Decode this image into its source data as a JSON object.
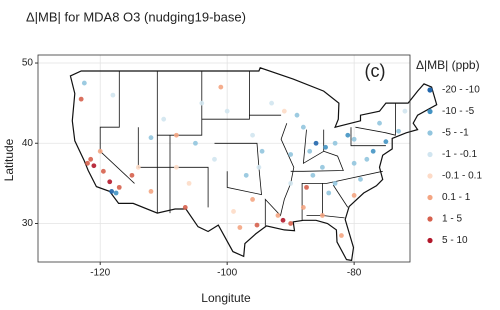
{
  "chart_data": {
    "type": "scatter",
    "title": "Δ|MB| for MDA8 O3 (nudging19-base)",
    "annotation": "(c)",
    "x_label": "Longitute",
    "y_label": "Latitude",
    "xlim": [
      -129.8,
      -71.2
    ],
    "ylim": [
      25.2,
      51
    ],
    "xticks": [
      -120,
      -100,
      -80
    ],
    "yticks": [
      30,
      40,
      50
    ],
    "grid": true,
    "legend_title": "Δ|MB| (ppb)",
    "legend": "right",
    "series": [
      {
        "name": "-20 - -10",
        "color": "#2166ac",
        "x": [
          -118.2,
          -86
        ],
        "values": [
          34.0,
          40
        ]
      },
      {
        "name": "-10 - -5",
        "color": "#4393c3",
        "x": [
          -117.5,
          -84.5,
          -77,
          -81,
          -75
        ],
        "values": [
          33.8,
          39.5,
          39,
          41,
          40.2
        ]
      },
      {
        "name": "-5 - -1",
        "color": "#92c5de",
        "x": [
          -88,
          -87,
          -83,
          -80,
          -78,
          -85,
          -90,
          -94.5,
          -97,
          -79,
          -83,
          -76,
          -73,
          -112,
          -105,
          -122.5,
          -89,
          -80,
          -84,
          -86.5
        ],
        "values": [
          42,
          39,
          40,
          40.5,
          38,
          37,
          38.6,
          39,
          36,
          35.5,
          35,
          42.5,
          41.5,
          40.7,
          40,
          47.5,
          43.5,
          37.5,
          33.8,
          36
        ]
      },
      {
        "name": "-1 - -0.1",
        "color": "#d1e5f0",
        "x": [
          -100,
          -96,
          -93,
          -110,
          -118,
          -104,
          -72,
          -95,
          -90,
          -102
        ],
        "values": [
          44,
          41,
          45,
          43,
          46,
          45,
          44,
          37,
          35,
          38
        ]
      },
      {
        "name": "-0.1 - 0.1",
        "color": "#fddbc7",
        "x": [
          -108,
          -106,
          -99,
          -91,
          -114
        ],
        "values": [
          37,
          35,
          31.5,
          44,
          37
        ]
      },
      {
        "name": "0.1 - 1",
        "color": "#f4a582",
        "x": [
          -120,
          -112,
          -96,
          -92,
          -88,
          -82,
          -98,
          -108,
          -101,
          -85,
          -80
        ],
        "values": [
          39,
          34,
          33,
          31,
          32,
          28.5,
          29.5,
          41,
          47,
          31,
          33.5
        ]
      },
      {
        "name": "1 - 5",
        "color": "#d6604d",
        "x": [
          -121.5,
          -119.5,
          -122,
          -117,
          -95.3,
          -90,
          -115,
          -123,
          -87.5,
          -106.6
        ],
        "values": [
          38,
          36.5,
          37.5,
          34.5,
          29.8,
          30,
          36,
          45.5,
          34.5,
          32
        ]
      },
      {
        "name": "5 - 10",
        "color": "#b2182b",
        "x": [
          -91.2,
          -118.5,
          -121
        ],
        "values": [
          30.4,
          35.2,
          37.2
        ]
      }
    ]
  }
}
